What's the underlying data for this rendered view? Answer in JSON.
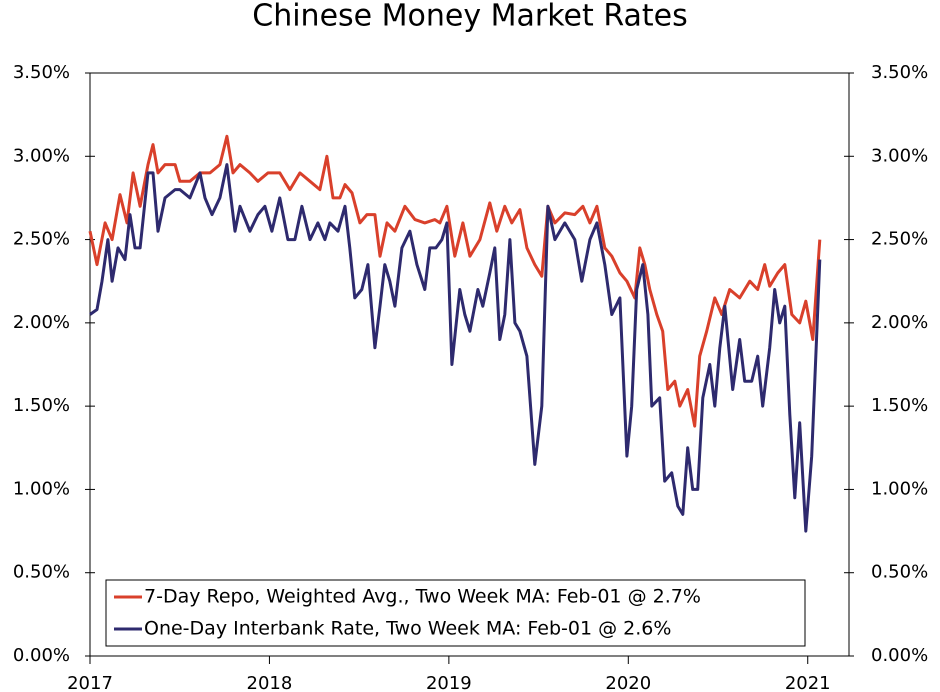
{
  "chart_data": {
    "type": "line",
    "title": "Chinese Money Market Rates",
    "xlim": [
      2017,
      2021.23
    ],
    "xticks": [
      2017,
      2018,
      2019,
      2020,
      2021
    ],
    "ylim": [
      0,
      3.5
    ],
    "yticks": [
      {
        "value": 0,
        "label": "0.00%"
      },
      {
        "value": 0.5,
        "label": "0.50%"
      },
      {
        "value": 1,
        "label": "1.00%"
      },
      {
        "value": 1.5,
        "label": "1.50%"
      },
      {
        "value": 2,
        "label": "2.00%"
      },
      {
        "value": 2.5,
        "label": "2.50%"
      },
      {
        "value": 3,
        "label": "3.00%"
      },
      {
        "value": 3.5,
        "label": "3.50%"
      }
    ],
    "y2lim": [
      0,
      3.5
    ],
    "y2ticks": [
      {
        "value": 0,
        "label": "0.00%"
      },
      {
        "value": 0.5,
        "label": "0.50%"
      },
      {
        "value": 1,
        "label": "1.00%"
      },
      {
        "value": 1.5,
        "label": "1.50%"
      },
      {
        "value": 2,
        "label": "2.00%"
      },
      {
        "value": 2.5,
        "label": "2.50%"
      },
      {
        "value": 3,
        "label": "3.00%"
      },
      {
        "value": 3.5,
        "label": "3.50%"
      }
    ],
    "legend": "lower left",
    "series": [
      {
        "name": "7-Day Repo, Weighted Avg., Two Week MA: Feb-01 @ 2.7%",
        "color": "#d9402b",
        "x": [
          2017,
          2017.039,
          2017.084,
          2017.123,
          2017.167,
          2017.206,
          2017.24,
          2017.279,
          2017.323,
          2017.351,
          2017.379,
          2017.418,
          2017.474,
          2017.501,
          2017.557,
          2017.613,
          2017.669,
          2017.724,
          2017.763,
          2017.797,
          2017.836,
          2017.891,
          2017.936,
          2017.992,
          2018.058,
          2018.114,
          2018.17,
          2018.226,
          2018.281,
          2018.32,
          2018.354,
          2018.393,
          2018.421,
          2018.46,
          2018.504,
          2018.543,
          2018.588,
          2018.616,
          2018.655,
          2018.699,
          2018.755,
          2018.811,
          2018.866,
          2018.922,
          2018.95,
          2018.989,
          2019.033,
          2019.078,
          2019.117,
          2019.173,
          2019.228,
          2019.267,
          2019.312,
          2019.351,
          2019.396,
          2019.435,
          2019.479,
          2019.518,
          2019.552,
          2019.591,
          2019.646,
          2019.702,
          2019.747,
          2019.786,
          2019.825,
          2019.869,
          2019.908,
          2019.953,
          2019.992,
          2020.036,
          2020.064,
          2020.092,
          2020.12,
          2020.159,
          2020.192,
          2020.22,
          2020.259,
          2020.287,
          2020.331,
          2020.37,
          2020.398,
          2020.437,
          2020.482,
          2020.521,
          2020.565,
          2020.621,
          2020.677,
          2020.721,
          2020.76,
          2020.788,
          2020.833,
          2020.872,
          2020.911,
          2020.955,
          2020.989,
          2021.028,
          2021.067
        ],
        "values": [
          2.55,
          2.35,
          2.6,
          2.5,
          2.77,
          2.6,
          2.9,
          2.7,
          2.95,
          3.07,
          2.9,
          2.95,
          2.95,
          2.85,
          2.85,
          2.9,
          2.9,
          2.95,
          3.12,
          2.9,
          2.95,
          2.9,
          2.85,
          2.9,
          2.9,
          2.8,
          2.9,
          2.85,
          2.8,
          3.0,
          2.75,
          2.75,
          2.83,
          2.78,
          2.6,
          2.65,
          2.65,
          2.4,
          2.6,
          2.55,
          2.7,
          2.62,
          2.6,
          2.62,
          2.6,
          2.7,
          2.4,
          2.6,
          2.4,
          2.5,
          2.72,
          2.55,
          2.7,
          2.6,
          2.68,
          2.45,
          2.35,
          2.28,
          2.7,
          2.6,
          2.66,
          2.65,
          2.7,
          2.6,
          2.7,
          2.45,
          2.4,
          2.3,
          2.25,
          2.15,
          2.45,
          2.35,
          2.2,
          2.05,
          1.95,
          1.6,
          1.65,
          1.5,
          1.6,
          1.38,
          1.8,
          1.95,
          2.15,
          2.05,
          2.2,
          2.15,
          2.25,
          2.2,
          2.35,
          2.22,
          2.3,
          2.35,
          2.05,
          2.0,
          2.13,
          1.9,
          2.5
        ]
      },
      {
        "name": "One-Day Interbank Rate, Two Week MA: Feb-01 @ 2.6%",
        "color": "#2e2a6e",
        "x": [
          2017,
          2017.039,
          2017.067,
          2017.1,
          2017.123,
          2017.156,
          2017.195,
          2017.223,
          2017.251,
          2017.279,
          2017.323,
          2017.351,
          2017.379,
          2017.418,
          2017.474,
          2017.501,
          2017.557,
          2017.613,
          2017.641,
          2017.68,
          2017.724,
          2017.763,
          2017.808,
          2017.836,
          2017.891,
          2017.936,
          2017.975,
          2018.014,
          2018.058,
          2018.103,
          2018.142,
          2018.181,
          2018.226,
          2018.27,
          2018.309,
          2018.337,
          2018.382,
          2018.421,
          2018.448,
          2018.476,
          2018.515,
          2018.549,
          2018.588,
          2018.616,
          2018.643,
          2018.671,
          2018.699,
          2018.738,
          2018.783,
          2018.822,
          2018.866,
          2018.894,
          2018.928,
          2018.961,
          2018.989,
          2019.017,
          2019.061,
          2019.089,
          2019.117,
          2019.162,
          2019.189,
          2019.228,
          2019.256,
          2019.284,
          2019.312,
          2019.34,
          2019.368,
          2019.396,
          2019.435,
          2019.479,
          2019.518,
          2019.552,
          2019.591,
          2019.646,
          2019.702,
          2019.741,
          2019.786,
          2019.825,
          2019.869,
          2019.908,
          2019.953,
          2019.992,
          2020.019,
          2020.047,
          2020.081,
          2020.109,
          2020.131,
          2020.175,
          2020.203,
          2020.242,
          2020.276,
          2020.304,
          2020.331,
          2020.359,
          2020.387,
          2020.415,
          2020.454,
          2020.482,
          2020.51,
          2020.538,
          2020.582,
          2020.621,
          2020.649,
          2020.688,
          2020.721,
          2020.749,
          2020.788,
          2020.816,
          2020.844,
          2020.872,
          2020.9,
          2020.928,
          2020.955,
          2020.989,
          2021.022,
          2021.067
        ],
        "values": [
          2.05,
          2.08,
          2.25,
          2.5,
          2.25,
          2.45,
          2.38,
          2.65,
          2.45,
          2.45,
          2.9,
          2.9,
          2.55,
          2.75,
          2.8,
          2.8,
          2.75,
          2.9,
          2.75,
          2.65,
          2.75,
          2.95,
          2.55,
          2.7,
          2.55,
          2.65,
          2.7,
          2.55,
          2.75,
          2.5,
          2.5,
          2.7,
          2.5,
          2.6,
          2.5,
          2.6,
          2.55,
          2.7,
          2.45,
          2.15,
          2.2,
          2.35,
          1.85,
          2.1,
          2.35,
          2.25,
          2.1,
          2.45,
          2.55,
          2.35,
          2.2,
          2.45,
          2.45,
          2.5,
          2.6,
          1.75,
          2.2,
          2.05,
          1.95,
          2.2,
          2.1,
          2.3,
          2.45,
          1.9,
          2.05,
          2.5,
          2.0,
          1.95,
          1.8,
          1.15,
          1.5,
          2.7,
          2.5,
          2.6,
          2.5,
          2.25,
          2.5,
          2.6,
          2.35,
          2.05,
          2.15,
          1.2,
          1.5,
          2.2,
          2.35,
          2.05,
          1.5,
          1.55,
          1.05,
          1.1,
          0.9,
          0.85,
          1.25,
          1.0,
          1.0,
          1.55,
          1.75,
          1.5,
          1.85,
          2.1,
          1.6,
          1.9,
          1.65,
          1.65,
          1.8,
          1.5,
          1.85,
          2.2,
          2.0,
          2.1,
          1.45,
          0.95,
          1.4,
          0.75,
          1.2,
          2.38
        ]
      }
    ]
  }
}
